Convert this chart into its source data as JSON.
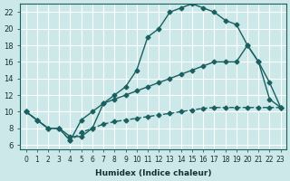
{
  "xlabel": "Humidex (Indice chaleur)",
  "ylabel": "",
  "bg_color": "#cce8e8",
  "line_color": "#1a6060",
  "grid_color": "#ffffff",
  "xlim": [
    -0.5,
    23.5
  ],
  "ylim": [
    5.5,
    23.0
  ],
  "yticks": [
    6,
    8,
    10,
    12,
    14,
    16,
    18,
    20,
    22
  ],
  "xticks": [
    0,
    1,
    2,
    3,
    4,
    5,
    6,
    7,
    8,
    9,
    10,
    11,
    12,
    13,
    14,
    15,
    16,
    17,
    18,
    19,
    20,
    21,
    22,
    23
  ],
  "curve1_x": [
    0,
    1,
    2,
    3,
    4,
    5,
    6,
    7,
    8,
    9,
    10,
    11,
    12,
    13,
    14,
    15,
    16,
    17,
    18,
    19,
    20,
    21,
    22,
    23
  ],
  "curve1_y": [
    10,
    9,
    8,
    8,
    7,
    7,
    8,
    11,
    12,
    13,
    15,
    19,
    20,
    22,
    22.5,
    23,
    22.5,
    22,
    21,
    20.5,
    18,
    16,
    11.5,
    10.5
  ],
  "curve2_x": [
    0,
    1,
    2,
    3,
    4,
    5,
    6,
    7,
    8,
    9,
    10,
    11,
    12,
    13,
    14,
    15,
    16,
    17,
    18,
    19,
    20,
    21,
    22,
    23
  ],
  "curve2_y": [
    10,
    9,
    8,
    8,
    6.5,
    9,
    10,
    11,
    11.5,
    12,
    12.5,
    13,
    13.5,
    14,
    14.5,
    15,
    15.5,
    16,
    16,
    16,
    18,
    16,
    13.5,
    10.5
  ],
  "curve3_x": [
    0,
    1,
    2,
    3,
    4,
    5,
    6,
    7,
    8,
    9,
    10,
    11,
    12,
    13,
    14,
    15,
    16,
    17,
    18,
    19,
    20,
    21,
    22,
    23
  ],
  "curve3_y": [
    10,
    9,
    8,
    8,
    6.5,
    7.5,
    8,
    8.5,
    8.8,
    9.0,
    9.2,
    9.4,
    9.6,
    9.8,
    10.0,
    10.2,
    10.4,
    10.5,
    10.5,
    10.5,
    10.5,
    10.5,
    10.5,
    10.5
  ]
}
